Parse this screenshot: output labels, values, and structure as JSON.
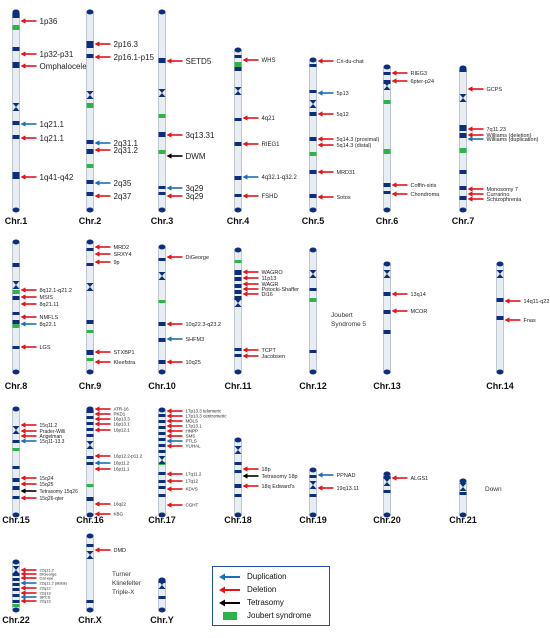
{
  "colors": {
    "duplication": "#1f6fb5",
    "deletion": "#e3141b",
    "tetrasomy": "#000000",
    "joubert": "#2db34a",
    "band": "#0b2f7e",
    "body": "#e8edf3"
  },
  "legend": [
    {
      "type": "duplication",
      "label": "Duplication"
    },
    {
      "type": "deletion",
      "label": "Deletion"
    },
    {
      "type": "tetrasomy",
      "label": "Tetrasomy"
    },
    {
      "type": "joubert",
      "label": "Joubert syndrome"
    }
  ],
  "chromosomes": [
    {
      "id": "1",
      "label": "Chr.1",
      "markers": [
        {
          "type": "deletion",
          "label": "1p36"
        },
        {
          "type": "deletion",
          "label": "1p32-p31"
        },
        {
          "type": "deletion",
          "label": "Omphalocele"
        },
        {
          "type": "duplication",
          "label": "1q21.1"
        },
        {
          "type": "deletion",
          "label": "1q21.1"
        },
        {
          "type": "deletion",
          "label": "1q41-q42"
        }
      ]
    },
    {
      "id": "2",
      "label": "Chr.2",
      "markers": [
        {
          "type": "deletion",
          "label": "2p16.3"
        },
        {
          "type": "deletion",
          "label": "2p16.1-p15"
        },
        {
          "type": "duplication",
          "label": "2q31.1"
        },
        {
          "type": "deletion",
          "label": "2q31.2"
        },
        {
          "type": "duplication",
          "label": "2q35"
        },
        {
          "type": "deletion",
          "label": "2q37"
        }
      ]
    },
    {
      "id": "3",
      "label": "Chr.3",
      "markers": [
        {
          "type": "deletion",
          "label": "SETD5"
        },
        {
          "type": "deletion",
          "label": "3q13.31"
        },
        {
          "type": "tetrasomy",
          "label": "DWM"
        },
        {
          "type": "duplication",
          "label": "3q29"
        },
        {
          "type": "deletion",
          "label": "3q29"
        }
      ]
    },
    {
      "id": "4",
      "label": "Chr.4",
      "markers": [
        {
          "type": "deletion",
          "label": "WHS"
        },
        {
          "type": "deletion",
          "label": "4q21"
        },
        {
          "type": "deletion",
          "label": "RIEG1"
        },
        {
          "type": "duplication",
          "label": "4q32.1-q32.2"
        },
        {
          "type": "deletion",
          "label": "FSHD"
        }
      ]
    },
    {
      "id": "5",
      "label": "Chr.5",
      "markers": [
        {
          "type": "deletion",
          "label": "Cri-du-chat"
        },
        {
          "type": "duplication",
          "label": "5p13"
        },
        {
          "type": "deletion",
          "label": "5q12"
        },
        {
          "type": "deletion",
          "label": "5q14.3 (proximal)"
        },
        {
          "type": "deletion",
          "label": "5q14.3 (distal)"
        },
        {
          "type": "deletion",
          "label": "MRD31"
        },
        {
          "type": "deletion",
          "label": "Sotos"
        }
      ]
    },
    {
      "id": "6",
      "label": "Chr.6",
      "markers": [
        {
          "type": "deletion",
          "label": "RIEG3"
        },
        {
          "type": "deletion",
          "label": "6pter-p24"
        },
        {
          "type": "deletion",
          "label": "Coffin-siris"
        },
        {
          "type": "deletion",
          "label": "Chondroma"
        }
      ]
    },
    {
      "id": "7",
      "label": "Chr.7",
      "markers": [
        {
          "type": "deletion",
          "label": "GCPS"
        },
        {
          "type": "deletion",
          "label": "7q11.23"
        },
        {
          "type": "deletion",
          "label": "Williams (deletion)"
        },
        {
          "type": "duplication",
          "label": "Williams (duplication)"
        },
        {
          "type": "deletion",
          "label": "Monosomy 7"
        },
        {
          "type": "deletion",
          "label": "Currarino"
        },
        {
          "type": "deletion",
          "label": "Schizophrenia"
        }
      ]
    },
    {
      "id": "8",
      "label": "Chr.8",
      "markers": [
        {
          "type": "deletion",
          "label": "8q12.1-q21.2"
        },
        {
          "type": "deletion",
          "label": "MSIS"
        },
        {
          "type": "deletion",
          "label": "8q21.11"
        },
        {
          "type": "deletion",
          "label": "NMFLS"
        },
        {
          "type": "duplication",
          "label": "8q22.1"
        },
        {
          "type": "deletion",
          "label": "LGS"
        }
      ]
    },
    {
      "id": "9",
      "label": "Chr.9",
      "markers": [
        {
          "type": "deletion",
          "label": "MRD2"
        },
        {
          "type": "deletion",
          "label": "SRXY4"
        },
        {
          "type": "deletion",
          "label": "9p"
        },
        {
          "type": "deletion",
          "label": "STXBP1"
        },
        {
          "type": "deletion",
          "label": "Kleefstra"
        }
      ]
    },
    {
      "id": "10",
      "label": "Chr.10",
      "markers": [
        {
          "type": "deletion",
          "label": "DiGeorge"
        },
        {
          "type": "deletion",
          "label": "10q22.3-q23.2"
        },
        {
          "type": "duplication",
          "label": "SHFM3"
        },
        {
          "type": "deletion",
          "label": "10q25"
        }
      ]
    },
    {
      "id": "11",
      "label": "Chr.11",
      "markers": [
        {
          "type": "deletion",
          "label": "WAGRO"
        },
        {
          "type": "deletion",
          "label": "11p13"
        },
        {
          "type": "deletion",
          "label": "WAGR"
        },
        {
          "type": "deletion",
          "label": "Potocki-Shaffer"
        },
        {
          "type": "deletion",
          "label": "Di16"
        },
        {
          "type": "deletion",
          "label": "TCPT"
        },
        {
          "type": "deletion",
          "label": "Jacobsen"
        }
      ]
    },
    {
      "id": "12",
      "label": "Chr.12",
      "note": "Joubert Syndrome 5",
      "markers": []
    },
    {
      "id": "13",
      "label": "Chr.13",
      "markers": [
        {
          "type": "deletion",
          "label": "13q14"
        },
        {
          "type": "deletion",
          "label": "MCOR"
        }
      ]
    },
    {
      "id": "14",
      "label": "Chr.14",
      "markers": [
        {
          "type": "deletion",
          "label": "14q11-q22"
        },
        {
          "type": "deletion",
          "label": "Fnas"
        }
      ]
    },
    {
      "id": "15",
      "label": "Chr.15",
      "markers": [
        {
          "type": "deletion",
          "label": "15q11.2"
        },
        {
          "type": "deletion",
          "label": "Prader-Willi"
        },
        {
          "type": "deletion",
          "label": "Angelman"
        },
        {
          "type": "duplication",
          "label": "15q11-13.3"
        },
        {
          "type": "deletion",
          "label": "15q24"
        },
        {
          "type": "deletion",
          "label": "15q25"
        },
        {
          "type": "tetrasomy",
          "label": "Tetrasomy 15q26"
        },
        {
          "type": "deletion",
          "label": "15q26-qter"
        }
      ]
    },
    {
      "id": "16",
      "label": "Chr.16",
      "markers": [
        {
          "type": "deletion",
          "label": "ATR-16"
        },
        {
          "type": "deletion",
          "label": "PKD1"
        },
        {
          "type": "deletion",
          "label": "16p13.3"
        },
        {
          "type": "deletion",
          "label": "16p13.1"
        },
        {
          "type": "deletion",
          "label": "16p12.1"
        },
        {
          "type": "deletion",
          "label": "16p12.2-p11.2"
        },
        {
          "type": "duplication",
          "label": "16p11.2"
        },
        {
          "type": "deletion",
          "label": "16p11.1"
        },
        {
          "type": "deletion",
          "label": "16q22"
        },
        {
          "type": "deletion",
          "label": "KBG"
        }
      ]
    },
    {
      "id": "17",
      "label": "Chr.17",
      "markers": [
        {
          "type": "deletion",
          "label": "17p13.3 telomeric"
        },
        {
          "type": "deletion",
          "label": "17p13.3 centromeric"
        },
        {
          "type": "deletion",
          "label": "MDLS"
        },
        {
          "type": "deletion",
          "label": "17p13.1"
        },
        {
          "type": "deletion",
          "label": "HNPP"
        },
        {
          "type": "deletion",
          "label": "SMS"
        },
        {
          "type": "duplication",
          "label": "PTLS"
        },
        {
          "type": "deletion",
          "label": "YUHAL"
        },
        {
          "type": "deletion",
          "label": "17q11.2"
        },
        {
          "type": "deletion",
          "label": "17q12"
        },
        {
          "type": "deletion",
          "label": "KDVS"
        },
        {
          "type": "deletion",
          "label": "CGHT"
        }
      ]
    },
    {
      "id": "18",
      "label": "Chr.18",
      "markers": [
        {
          "type": "deletion",
          "label": "18p"
        },
        {
          "type": "tetrasomy",
          "label": "Tetrasomy 18p"
        },
        {
          "type": "deletion",
          "label": "18q Edward's"
        }
      ]
    },
    {
      "id": "19",
      "label": "Chr.19",
      "markers": [
        {
          "type": "duplication",
          "label": "PPNAD"
        },
        {
          "type": "deletion",
          "label": "19q13.11"
        }
      ]
    },
    {
      "id": "20",
      "label": "Chr.20",
      "markers": [
        {
          "type": "deletion",
          "label": "ALGS1"
        }
      ]
    },
    {
      "id": "21",
      "label": "Chr.21",
      "note": "Down",
      "markers": []
    },
    {
      "id": "22",
      "label": "Chr.22",
      "markers": [
        {
          "type": "deletion",
          "label": "22q11.2"
        },
        {
          "type": "deletion",
          "label": "DiGeorge"
        },
        {
          "type": "deletion",
          "label": "Cat eye"
        },
        {
          "type": "duplication",
          "label": "22q11.2 (distal)"
        },
        {
          "type": "deletion",
          "label": "22q12"
        },
        {
          "type": "deletion",
          "label": "22q13"
        },
        {
          "type": "duplication",
          "label": "SPCS"
        },
        {
          "type": "deletion",
          "label": "22q13"
        }
      ]
    },
    {
      "id": "X",
      "label": "Chr.X",
      "note_lines": [
        "Turner",
        "Klinefelter",
        "Triple-X"
      ],
      "markers": [
        {
          "type": "deletion",
          "label": "DMD"
        }
      ]
    },
    {
      "id": "Y",
      "label": "Chr.Y",
      "markers": []
    }
  ]
}
